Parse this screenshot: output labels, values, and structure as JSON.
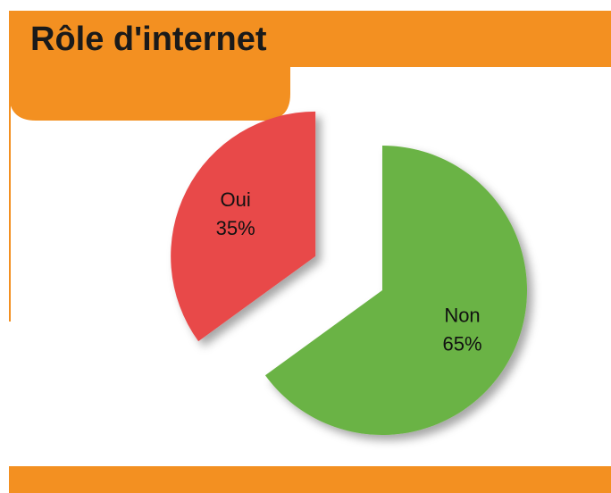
{
  "chart_data": {
    "type": "pie",
    "title": "Rôle d'internet",
    "categories": [
      "Non",
      "Oui"
    ],
    "values": [
      65,
      35
    ],
    "value_labels": [
      "65%",
      "35%"
    ],
    "colors": [
      "#6ab344",
      "#e84848"
    ]
  }
}
